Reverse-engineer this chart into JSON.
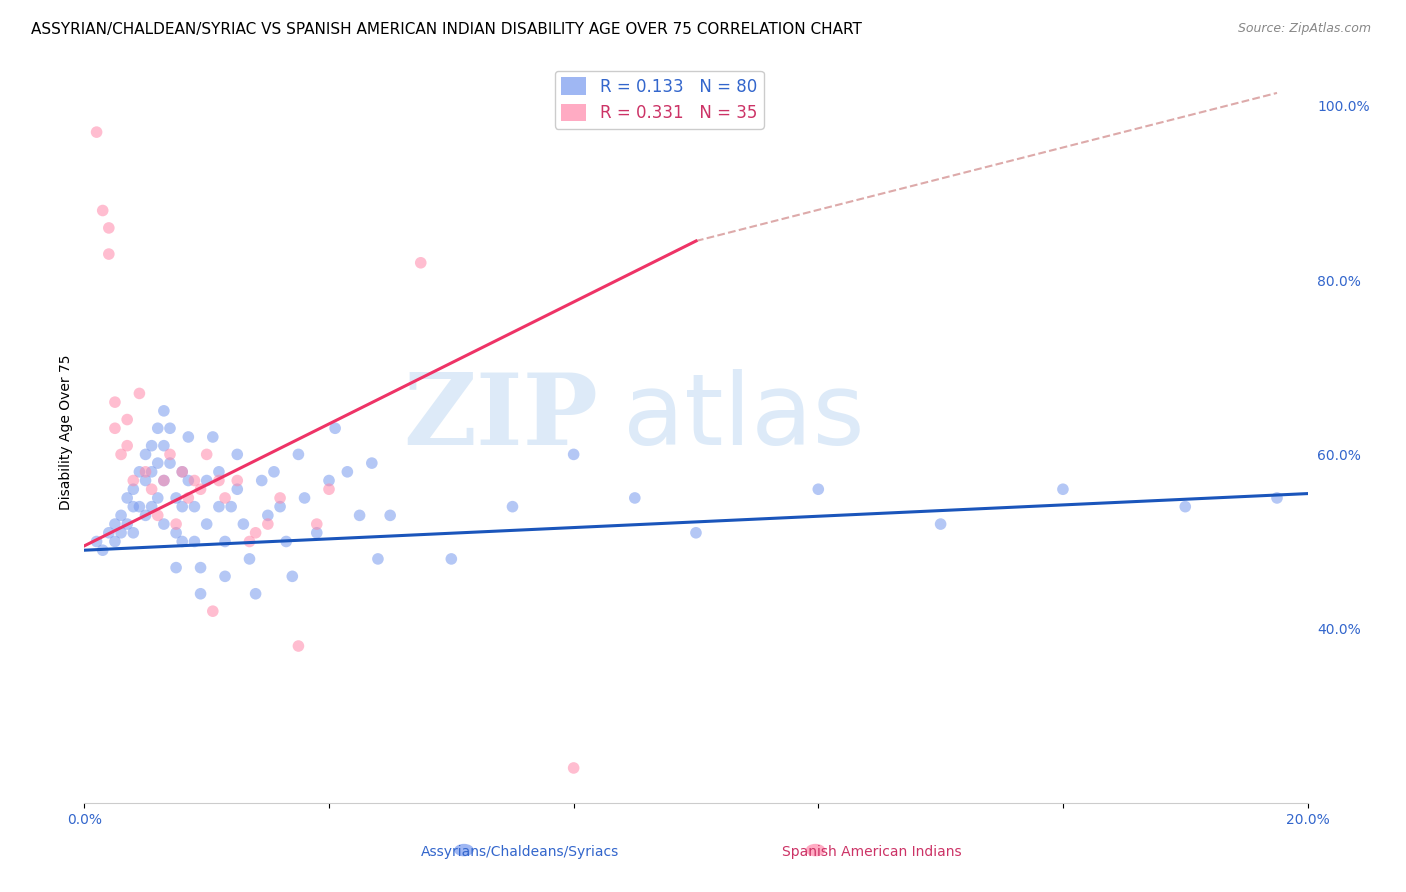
{
  "title": "ASSYRIAN/CHALDEAN/SYRIAC VS SPANISH AMERICAN INDIAN DISABILITY AGE OVER 75 CORRELATION CHART",
  "source": "Source: ZipAtlas.com",
  "ylabel": "Disability Age Over 75",
  "xlim": [
    0.0,
    0.2
  ],
  "ylim": [
    0.2,
    1.05
  ],
  "xticks": [
    0.0,
    0.04,
    0.08,
    0.12,
    0.16,
    0.2
  ],
  "xticklabels": [
    "0.0%",
    "",
    "",
    "",
    "",
    "20.0%"
  ],
  "yticks_right": [
    0.4,
    0.6,
    0.8,
    1.0
  ],
  "ytick_right_labels": [
    "40.0%",
    "60.0%",
    "80.0%",
    "100.0%"
  ],
  "blue_color": "#7799ee",
  "pink_color": "#ff88aa",
  "blue_line_color": "#1a55bb",
  "pink_line_color": "#ee3366",
  "dashed_line_color": "#ddaaaa",
  "legend_blue_r": "R = 0.133",
  "legend_blue_n": "N = 80",
  "legend_pink_r": "R = 0.331",
  "legend_pink_n": "N = 35",
  "watermark_zip": "ZIP",
  "watermark_atlas": "atlas",
  "blue_scatter_x": [
    0.002,
    0.003,
    0.004,
    0.005,
    0.005,
    0.006,
    0.006,
    0.007,
    0.007,
    0.008,
    0.008,
    0.008,
    0.009,
    0.009,
    0.01,
    0.01,
    0.01,
    0.011,
    0.011,
    0.011,
    0.012,
    0.012,
    0.012,
    0.013,
    0.013,
    0.013,
    0.013,
    0.014,
    0.014,
    0.015,
    0.015,
    0.015,
    0.016,
    0.016,
    0.016,
    0.017,
    0.017,
    0.018,
    0.018,
    0.019,
    0.019,
    0.02,
    0.02,
    0.021,
    0.022,
    0.022,
    0.023,
    0.023,
    0.024,
    0.025,
    0.025,
    0.026,
    0.027,
    0.028,
    0.029,
    0.03,
    0.031,
    0.032,
    0.033,
    0.034,
    0.035,
    0.036,
    0.038,
    0.04,
    0.041,
    0.043,
    0.045,
    0.047,
    0.048,
    0.05,
    0.06,
    0.07,
    0.08,
    0.09,
    0.1,
    0.12,
    0.14,
    0.16,
    0.18,
    0.195
  ],
  "blue_scatter_y": [
    0.5,
    0.49,
    0.51,
    0.52,
    0.5,
    0.53,
    0.51,
    0.55,
    0.52,
    0.56,
    0.54,
    0.51,
    0.58,
    0.54,
    0.6,
    0.57,
    0.53,
    0.61,
    0.58,
    0.54,
    0.63,
    0.59,
    0.55,
    0.65,
    0.61,
    0.57,
    0.52,
    0.63,
    0.59,
    0.55,
    0.51,
    0.47,
    0.5,
    0.54,
    0.58,
    0.62,
    0.57,
    0.54,
    0.5,
    0.47,
    0.44,
    0.52,
    0.57,
    0.62,
    0.58,
    0.54,
    0.5,
    0.46,
    0.54,
    0.6,
    0.56,
    0.52,
    0.48,
    0.44,
    0.57,
    0.53,
    0.58,
    0.54,
    0.5,
    0.46,
    0.6,
    0.55,
    0.51,
    0.57,
    0.63,
    0.58,
    0.53,
    0.59,
    0.48,
    0.53,
    0.48,
    0.54,
    0.6,
    0.55,
    0.51,
    0.56,
    0.52,
    0.56,
    0.54,
    0.55
  ],
  "pink_scatter_x": [
    0.002,
    0.003,
    0.004,
    0.004,
    0.005,
    0.005,
    0.006,
    0.007,
    0.007,
    0.008,
    0.009,
    0.01,
    0.011,
    0.012,
    0.013,
    0.014,
    0.015,
    0.016,
    0.017,
    0.018,
    0.019,
    0.02,
    0.021,
    0.022,
    0.023,
    0.025,
    0.027,
    0.028,
    0.03,
    0.032,
    0.035,
    0.038,
    0.04,
    0.055,
    0.08
  ],
  "pink_scatter_y": [
    0.97,
    0.88,
    0.86,
    0.83,
    0.66,
    0.63,
    0.6,
    0.64,
    0.61,
    0.57,
    0.67,
    0.58,
    0.56,
    0.53,
    0.57,
    0.6,
    0.52,
    0.58,
    0.55,
    0.57,
    0.56,
    0.6,
    0.42,
    0.57,
    0.55,
    0.57,
    0.5,
    0.51,
    0.52,
    0.55,
    0.38,
    0.52,
    0.56,
    0.82,
    0.24
  ],
  "blue_trendline_x": [
    0.0,
    0.2
  ],
  "blue_trendline_y": [
    0.49,
    0.555
  ],
  "pink_trendline_x": [
    0.0,
    0.1
  ],
  "pink_trendline_y": [
    0.495,
    0.845
  ],
  "dashed_line_x": [
    0.1,
    0.195
  ],
  "dashed_line_y": [
    0.845,
    1.015
  ],
  "marker_size": 70,
  "alpha": 0.55,
  "grid_color": "#cccccc",
  "background_color": "#ffffff",
  "text_color_blue": "#3366cc",
  "text_color_pink": "#cc3366",
  "title_fontsize": 11,
  "axis_label_fontsize": 10,
  "tick_fontsize": 10,
  "legend_fontsize": 12
}
